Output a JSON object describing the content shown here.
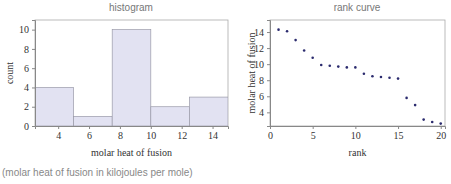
{
  "chart_data": [
    {
      "type": "histogram",
      "title": "histogram",
      "x_label": "molar heat of fusion",
      "y_label": "count",
      "annotations": [
        "(molar heat of fusion in kilojoules per mole)"
      ],
      "bins": [
        2.5,
        5,
        7.5,
        10,
        12.5,
        15
      ],
      "values": [
        4,
        1,
        10,
        2,
        3
      ],
      "color": "#e2e2f2",
      "xlim": [
        2.5,
        15
      ],
      "xticks": [
        4,
        6,
        8,
        10,
        12,
        14
      ],
      "ylim": [
        0,
        11
      ],
      "yticks": [
        0,
        2,
        4,
        6,
        8,
        10
      ],
      "grid": false
    },
    {
      "type": "scatter",
      "title": "rank curve",
      "x_label": "rank",
      "y_label": "molar heat of fusion",
      "x": [
        1,
        2,
        3,
        4,
        5,
        6,
        7,
        8,
        9,
        10,
        11,
        12,
        13,
        14,
        15,
        16,
        17,
        18,
        19,
        20
      ],
      "values": [
        14.3,
        14.1,
        13.0,
        11.7,
        10.8,
        9.9,
        9.8,
        9.7,
        9.6,
        9.6,
        8.8,
        8.5,
        8.4,
        8.3,
        8.2,
        5.8,
        4.9,
        3.1,
        2.8,
        2.6
      ],
      "color": "#2b2b6e",
      "marker": "circle",
      "xlim": [
        0,
        20.5
      ],
      "xticks": [
        0,
        5,
        10,
        15,
        20
      ],
      "ylim": [
        2.3,
        15.5
      ],
      "yticks": [
        4,
        6,
        8,
        10,
        12,
        14
      ],
      "grid": false
    }
  ]
}
